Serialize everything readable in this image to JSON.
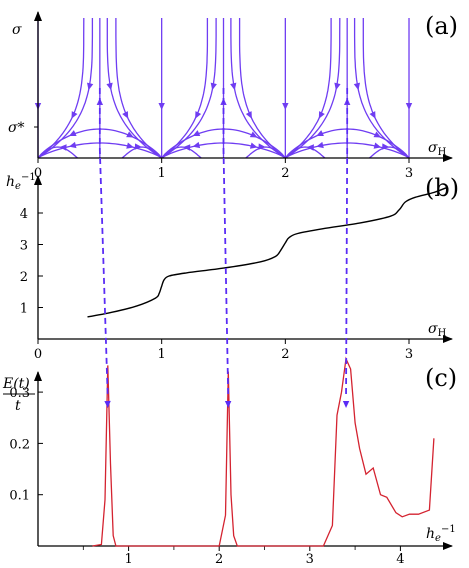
{
  "colors": {
    "flow": "#6f3df2",
    "arrow_link": "#5a2cf5",
    "curve": "#000000",
    "energy": "#d42330"
  },
  "chart_data": [
    {
      "panel_label": "(a)",
      "type": "line",
      "ylabel": "σ",
      "ylabel_mark": "σ*",
      "xlabel": "σ",
      "xlabel_sub": "H",
      "x_ticks": [
        "0",
        "1",
        "2",
        "3"
      ],
      "xlim": [
        0,
        3.2
      ],
      "fixed_points": [
        0,
        1,
        2,
        3
      ],
      "separatrix_tops": [
        0.5,
        1.5,
        2.5
      ]
    },
    {
      "panel_label": "(b)",
      "type": "line",
      "ylabel": "h",
      "ylabel_sub": "e",
      "ylabel_sup": "−1",
      "xlabel": "σ",
      "xlabel_sub": "H",
      "x_ticks": [
        "0",
        "1",
        "2",
        "3"
      ],
      "y_ticks": [
        "1",
        "2",
        "3",
        "4"
      ],
      "xlim": [
        0,
        3.2
      ],
      "ylim": [
        0,
        5.1
      ],
      "x": [
        0.4,
        0.6,
        0.8,
        0.95,
        0.98,
        1.0,
        1.02,
        1.06,
        1.2,
        1.5,
        1.8,
        1.92,
        1.96,
        2.0,
        2.03,
        2.1,
        2.3,
        2.6,
        2.85,
        2.92,
        2.97,
        3.05,
        3.2,
        3.3
      ],
      "y": [
        0.7,
        0.85,
        1.05,
        1.3,
        1.45,
        1.68,
        1.88,
        2.0,
        2.1,
        2.25,
        2.45,
        2.62,
        2.8,
        3.05,
        3.22,
        3.35,
        3.5,
        3.68,
        3.9,
        4.1,
        4.35,
        4.5,
        4.65,
        4.8
      ]
    },
    {
      "panel_label": "(c)",
      "type": "line",
      "ylabel": "E(t)",
      "ylabel_den": "t",
      "xlabel": "h",
      "xlabel_sub": "e",
      "xlabel_sup": "−1",
      "x_ticks": [
        "1",
        "2",
        "3",
        "4"
      ],
      "y_ticks": [
        "0.1",
        "0.2",
        "0.3"
      ],
      "xlim": [
        0,
        4.5
      ],
      "ylim": [
        0,
        0.4
      ],
      "x": [
        0.6,
        0.7,
        0.74,
        0.77,
        0.8,
        0.83,
        0.86,
        0.9,
        1.0,
        2.0,
        2.07,
        2.1,
        2.13,
        2.16,
        2.2,
        2.25,
        3.15,
        3.25,
        3.3,
        3.35,
        3.4,
        3.45,
        3.5,
        3.55,
        3.62,
        3.7,
        3.78,
        3.85,
        3.95,
        4.02,
        4.1,
        4.2,
        4.32,
        4.37
      ],
      "y": [
        0.0,
        0.003,
        0.09,
        0.352,
        0.16,
        0.02,
        0.0,
        0.0,
        0.0,
        0.0,
        0.06,
        0.34,
        0.1,
        0.02,
        0.0,
        0.0,
        0.0,
        0.04,
        0.255,
        0.3,
        0.365,
        0.345,
        0.24,
        0.19,
        0.14,
        0.152,
        0.1,
        0.095,
        0.065,
        0.057,
        0.062,
        0.062,
        0.07,
        0.21
      ]
    }
  ]
}
